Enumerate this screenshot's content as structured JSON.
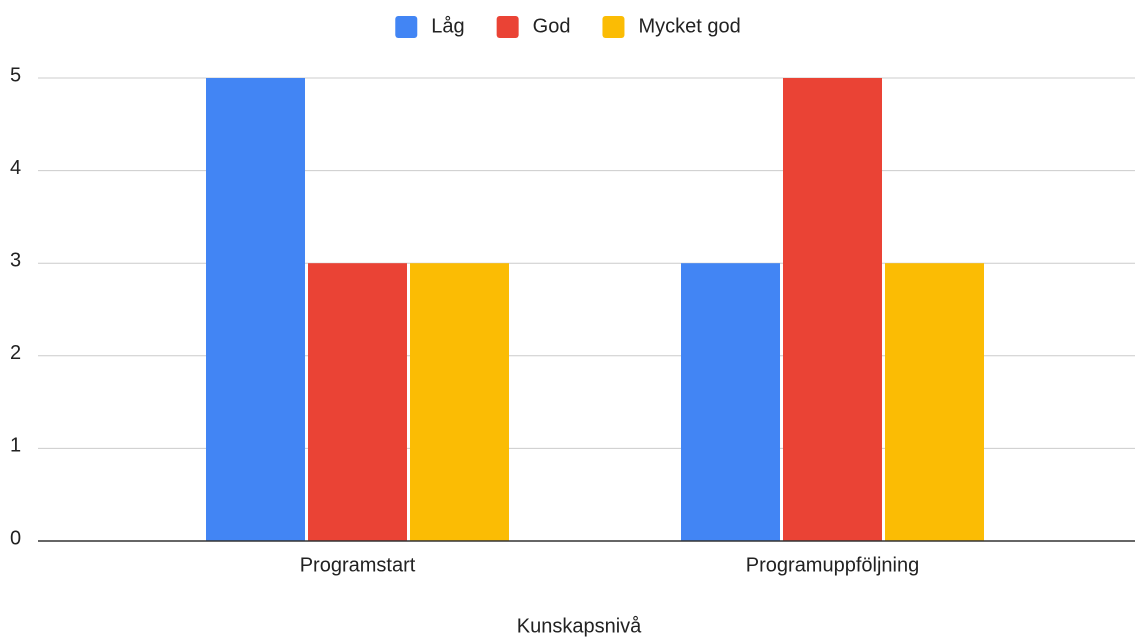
{
  "chart_data": {
    "type": "bar",
    "categories": [
      "Programstart",
      "Programuppföljning"
    ],
    "series": [
      {
        "name": "Låg",
        "color": "#4285f4",
        "values": [
          5,
          3
        ]
      },
      {
        "name": "God",
        "color": "#ea4335",
        "values": [
          3,
          5
        ]
      },
      {
        "name": "Mycket god",
        "color": "#fbbc04",
        "values": [
          3,
          3
        ]
      }
    ],
    "xlabel": "Kunskapsnivå",
    "ylim": [
      0,
      5
    ],
    "yticks": [
      0,
      1,
      2,
      3,
      4,
      5
    ],
    "grid": true,
    "legend": "top"
  }
}
